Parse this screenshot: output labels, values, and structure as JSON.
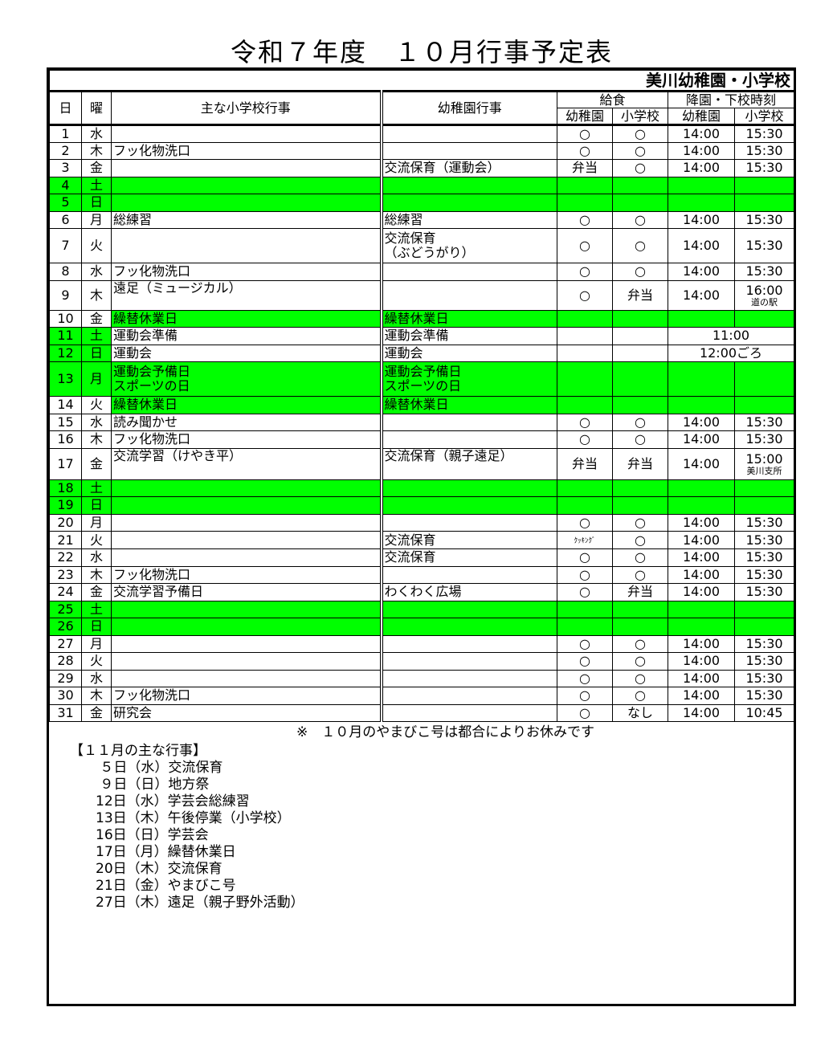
{
  "title": "令和７年度　１０月行事予定表",
  "school_name": "美川幼稚園・小学校",
  "highlight_color": "#00ff00",
  "headers": {
    "day": "日",
    "dow": "曜",
    "school_events": "主な小学校行事",
    "kinder_events": "幼稚園行事",
    "lunch": "給食",
    "dismissal": "降園・下校時刻",
    "kinder": "幼稚園",
    "school": "小学校"
  },
  "rows": [
    {
      "day": "1",
      "dow": "水",
      "school": "",
      "kinder": "",
      "lk": "○",
      "ls": "○",
      "tk": "14:00",
      "ts": "15:30"
    },
    {
      "day": "2",
      "dow": "木",
      "school": "フッ化物洗口",
      "kinder": "",
      "lk": "○",
      "ls": "○",
      "tk": "14:00",
      "ts": "15:30"
    },
    {
      "day": "3",
      "dow": "金",
      "school": "",
      "kinder": "交流保育（運動会）",
      "lk": "弁当",
      "ls": "○",
      "tk": "14:00",
      "ts": "15:30"
    },
    {
      "day": "4",
      "dow": "土",
      "school": "",
      "kinder": "",
      "lk": "",
      "ls": "",
      "tk": "",
      "ts": "",
      "shade": "all"
    },
    {
      "day": "5",
      "dow": "日",
      "school": "",
      "kinder": "",
      "lk": "",
      "ls": "",
      "tk": "",
      "ts": "",
      "shade": "all"
    },
    {
      "day": "6",
      "dow": "月",
      "school": "総練習",
      "kinder": "総練習",
      "lk": "○",
      "ls": "○",
      "tk": "14:00",
      "ts": "15:30"
    },
    {
      "day": "7",
      "dow": "火",
      "school": "",
      "kinder": "交流保育",
      "kinder2": "（ぶどうがり）",
      "lk": "○",
      "ls": "○",
      "tk": "14:00",
      "ts": "15:30",
      "tall": true
    },
    {
      "day": "8",
      "dow": "水",
      "school": "フッ化物洗口",
      "kinder": "",
      "lk": "○",
      "ls": "○",
      "tk": "14:00",
      "ts": "15:30"
    },
    {
      "day": "9",
      "dow": "木",
      "school": "遠足（ミュージカル）",
      "kinder": "",
      "lk": "○",
      "ls": "弁当",
      "tk": "14:00",
      "ts": "16:00",
      "ts_note": "道の駅",
      "tall": true,
      "top": true
    },
    {
      "day": "10",
      "dow": "金",
      "school": "繰替休業日",
      "kinder": "繰替休業日",
      "lk": "",
      "ls": "",
      "tk": "",
      "ts": "",
      "shade": "events"
    },
    {
      "day": "11",
      "dow": "土",
      "school": "運動会準備",
      "kinder": "運動会準備",
      "lk": "",
      "ls": "",
      "time_merged": "11:00",
      "shade": "date"
    },
    {
      "day": "12",
      "dow": "日",
      "school": "運動会",
      "kinder": "運動会",
      "lk": "",
      "ls": "",
      "time_merged": "12:00ごろ",
      "shade": "date"
    },
    {
      "day": "13",
      "dow": "月",
      "school": "運動会予備日",
      "school2": "スポーツの日",
      "kinder": "運動会予備日",
      "kinder2": "スポーツの日",
      "lk": "",
      "ls": "",
      "tk": "",
      "ts": "",
      "shade": "all",
      "tall": true
    },
    {
      "day": "14",
      "dow": "火",
      "school": "繰替休業日",
      "kinder": "繰替休業日",
      "lk": "",
      "ls": "",
      "tk": "",
      "ts": "",
      "shade": "events"
    },
    {
      "day": "15",
      "dow": "水",
      "school": "読み聞かせ",
      "kinder": "",
      "lk": "○",
      "ls": "○",
      "tk": "14:00",
      "ts": "15:30"
    },
    {
      "day": "16",
      "dow": "木",
      "school": "フッ化物洗口",
      "kinder": "",
      "lk": "○",
      "ls": "○",
      "tk": "14:00",
      "ts": "15:30"
    },
    {
      "day": "17",
      "dow": "金",
      "school": "交流学習（けやき平）",
      "kinder": "交流保育（親子遠足）",
      "lk": "弁当",
      "ls": "弁当",
      "tk": "14:00",
      "ts": "15:00",
      "ts_note": "美川支所",
      "tall": true,
      "top": true
    },
    {
      "day": "18",
      "dow": "土",
      "school": "",
      "kinder": "",
      "lk": "",
      "ls": "",
      "tk": "",
      "ts": "",
      "shade": "all"
    },
    {
      "day": "19",
      "dow": "日",
      "school": "",
      "kinder": "",
      "lk": "",
      "ls": "",
      "tk": "",
      "ts": "",
      "shade": "all"
    },
    {
      "day": "20",
      "dow": "月",
      "school": "",
      "kinder": "",
      "lk": "○",
      "ls": "○",
      "tk": "14:00",
      "ts": "15:30"
    },
    {
      "day": "21",
      "dow": "火",
      "school": "",
      "kinder": "交流保育",
      "lk": "ｸｯｷﾝｸﾞ",
      "lk_small": true,
      "ls": "○",
      "tk": "14:00",
      "ts": "15:30"
    },
    {
      "day": "22",
      "dow": "水",
      "school": "",
      "kinder": "交流保育",
      "lk": "○",
      "ls": "○",
      "tk": "14:00",
      "ts": "15:30"
    },
    {
      "day": "23",
      "dow": "木",
      "school": "フッ化物洗口",
      "kinder": "",
      "lk": "○",
      "ls": "○",
      "tk": "14:00",
      "ts": "15:30"
    },
    {
      "day": "24",
      "dow": "金",
      "school": "交流学習予備日",
      "kinder": "わくわく広場",
      "lk": "○",
      "ls": "弁当",
      "tk": "14:00",
      "ts": "15:30"
    },
    {
      "day": "25",
      "dow": "土",
      "school": "",
      "kinder": "",
      "lk": "",
      "ls": "",
      "tk": "",
      "ts": "",
      "shade": "all"
    },
    {
      "day": "26",
      "dow": "日",
      "school": "",
      "kinder": "",
      "lk": "",
      "ls": "",
      "tk": "",
      "ts": "",
      "shade": "all"
    },
    {
      "day": "27",
      "dow": "月",
      "school": "",
      "kinder": "",
      "lk": "○",
      "ls": "○",
      "tk": "14:00",
      "ts": "15:30"
    },
    {
      "day": "28",
      "dow": "火",
      "school": "",
      "kinder": "",
      "lk": "○",
      "ls": "○",
      "tk": "14:00",
      "ts": "15:30"
    },
    {
      "day": "29",
      "dow": "水",
      "school": "",
      "kinder": "",
      "lk": "○",
      "ls": "○",
      "tk": "14:00",
      "ts": "15:30"
    },
    {
      "day": "30",
      "dow": "木",
      "school": "フッ化物洗口",
      "kinder": "",
      "lk": "○",
      "ls": "○",
      "tk": "14:00",
      "ts": "15:30"
    },
    {
      "day": "31",
      "dow": "金",
      "school": "研究会",
      "kinder": "",
      "lk": "○",
      "ls": "なし",
      "tk": "14:00",
      "ts": "10:45"
    }
  ],
  "notice": "※　１０月のやまびこ号は都合によりお休みです",
  "november": {
    "heading": "【１１月の主な行事】",
    "items": [
      " ５日（水）交流保育",
      " ９日（日）地方祭",
      "12日（水）学芸会総練習",
      "13日（木）午後停業（小学校）",
      "16日（日）学芸会",
      "17日（月）繰替休業日",
      "20日（木）交流保育",
      "21日（金）やまびこ号",
      "27日（木）遠足（親子野外活動）"
    ]
  }
}
